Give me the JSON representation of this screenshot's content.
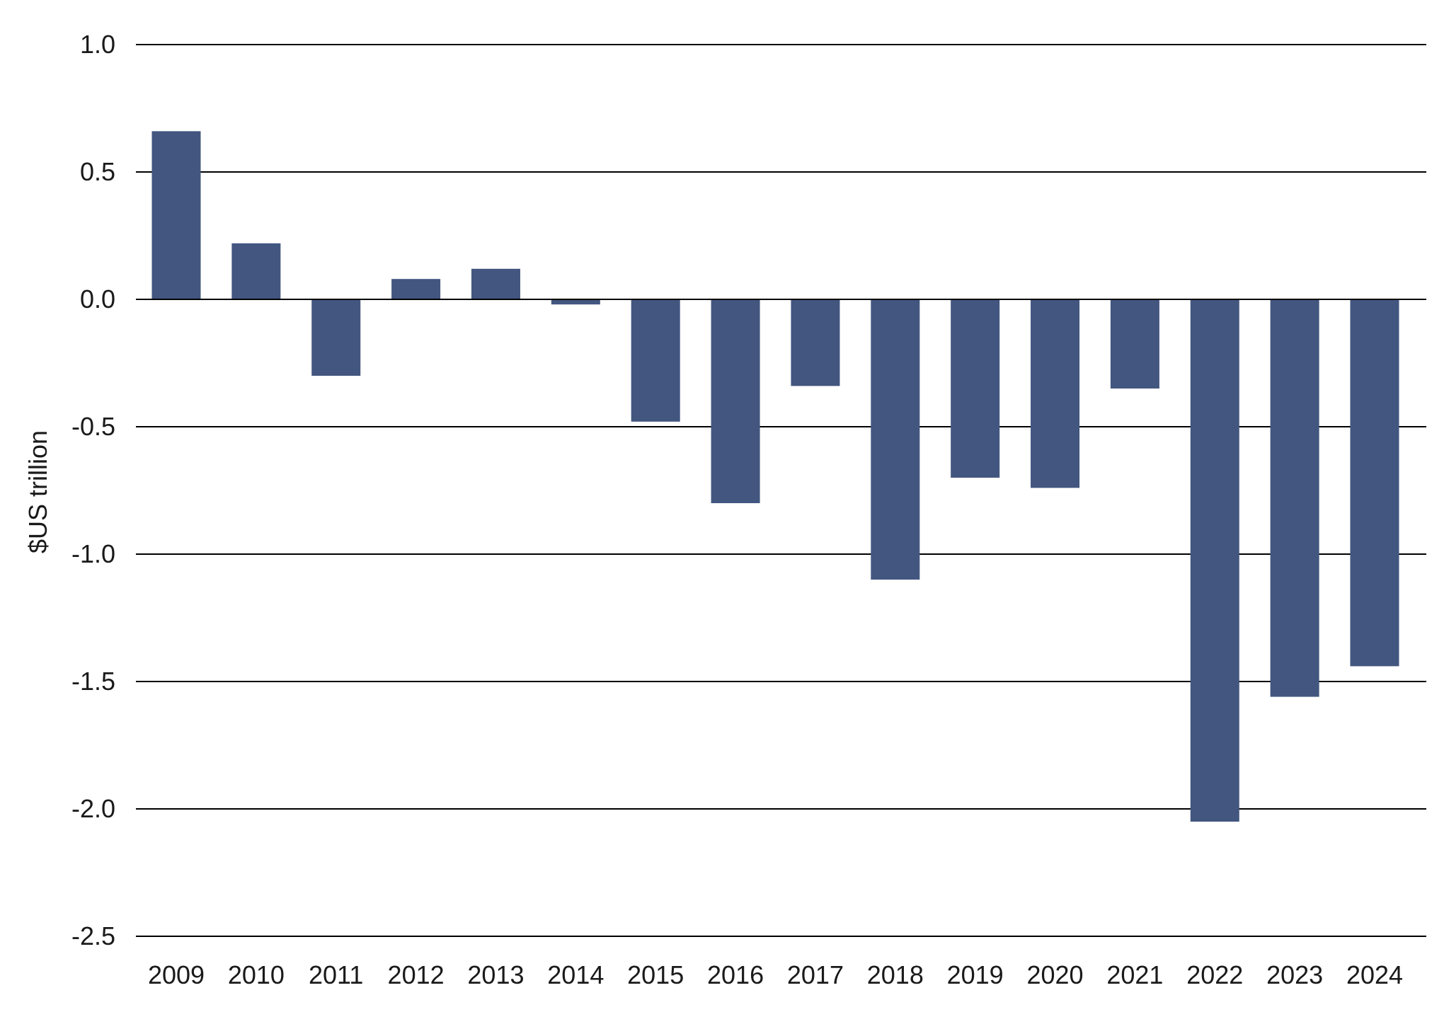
{
  "chart_data": {
    "type": "bar",
    "title": "",
    "xlabel": "",
    "ylabel": "$US trillion",
    "ylim": [
      -2.5,
      1.0
    ],
    "yticks": [
      1.0,
      0.5,
      0.0,
      -0.5,
      -1.0,
      -1.5,
      -2.0,
      -2.5
    ],
    "ytick_labels": [
      "1.0",
      "0.5",
      "0.0",
      "-0.5",
      "-1.0",
      "-1.5",
      "-2.0",
      "-2.5"
    ],
    "grid": true,
    "bar_color": "#42567f",
    "categories": [
      "2009",
      "2010",
      "2011",
      "2012",
      "2013",
      "2014",
      "2015",
      "2016",
      "2017",
      "2018",
      "2019",
      "2020",
      "2021",
      "2022",
      "2023",
      "2024"
    ],
    "values": [
      0.66,
      0.22,
      -0.3,
      0.08,
      0.12,
      -0.02,
      -0.48,
      -0.8,
      -0.34,
      -1.1,
      -0.7,
      -0.74,
      -0.35,
      -2.05,
      -1.56,
      -1.44
    ]
  }
}
